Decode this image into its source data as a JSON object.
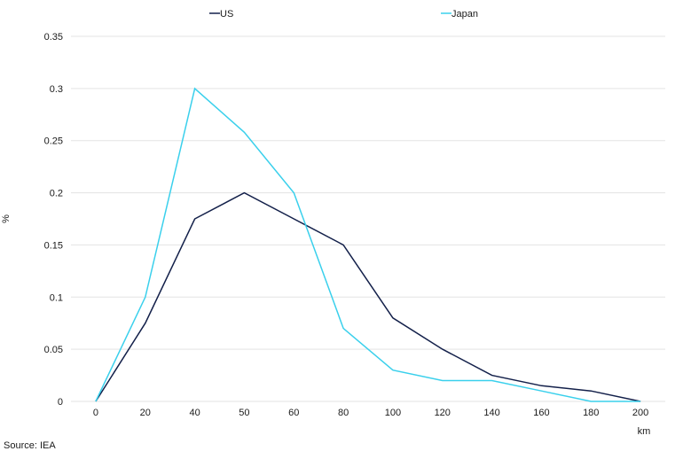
{
  "chart_data": {
    "type": "line",
    "x": [
      "0",
      "20",
      "40",
      "50",
      "60",
      "80",
      "100",
      "120",
      "140",
      "160",
      "180",
      "200"
    ],
    "series": [
      {
        "name": "US",
        "color": "#13204a",
        "values": [
          0,
          0.075,
          0.175,
          0.2,
          0.175,
          0.15,
          0.08,
          0.05,
          0.025,
          0.015,
          0.01,
          0
        ]
      },
      {
        "name": "Japan",
        "color": "#3ad0ec",
        "values": [
          0,
          0.1,
          0.3,
          0.258,
          0.2,
          0.07,
          0.03,
          0.02,
          0.02,
          0.01,
          0,
          0
        ]
      }
    ],
    "xlabel": "km",
    "ylabel": "%",
    "ylim": [
      0,
      0.35
    ],
    "yticks": [
      "0",
      "0.05",
      "0.1",
      "0.15",
      "0.2",
      "0.25",
      "0.3",
      "0.35"
    ],
    "grid": "horizontal",
    "legend_position": "top"
  },
  "source": "Source: IEA"
}
